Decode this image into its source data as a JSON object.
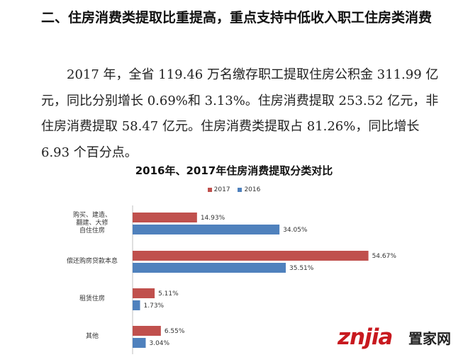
{
  "document": {
    "heading": "二、住房消费类提取比重提高，重点支持中低收入职工住房类消费",
    "paragraph": "2017 年，全省 119.46 万名缴存职工提取住房公积金 311.99 亿元，同比分别增长 0.69%和 3.13%。住房消费提取 253.52 亿元，非住房消费提取 58.47 亿元。住房消费类提取占 81.26%，同比增长 6.93 个百分点。"
  },
  "chart_data": {
    "type": "bar",
    "orientation": "horizontal",
    "title": "2016年、2017年住房消费提取分类对比",
    "legend_position": "top",
    "categories": [
      "购买、建造、翻建、大修自住住房",
      "偿还购房贷款本息",
      "租赁住房",
      "其他"
    ],
    "category_lines": [
      [
        "购买、建造、",
        "翻建、大修",
        "自住住房"
      ],
      [
        "偿还购房贷款本息"
      ],
      [
        "租赁住房"
      ],
      [
        "其他"
      ]
    ],
    "series": [
      {
        "name": "2017",
        "values": [
          14.93,
          54.67,
          5.11,
          6.55
        ],
        "labels": [
          "14.93%",
          "54.67%",
          "5.11%",
          "6.55%"
        ],
        "color": "#c0504d"
      },
      {
        "name": "2016",
        "values": [
          34.05,
          35.51,
          1.73,
          3.04
        ],
        "labels": [
          "34.05%",
          "35.51%",
          "1.73%",
          "3.04%"
        ],
        "color": "#4f81bd"
      }
    ],
    "xlim": [
      0,
      60
    ],
    "grid": false
  },
  "watermark": {
    "latin": "znjia",
    "chinese": "置家网",
    "color": "#c8191f"
  }
}
